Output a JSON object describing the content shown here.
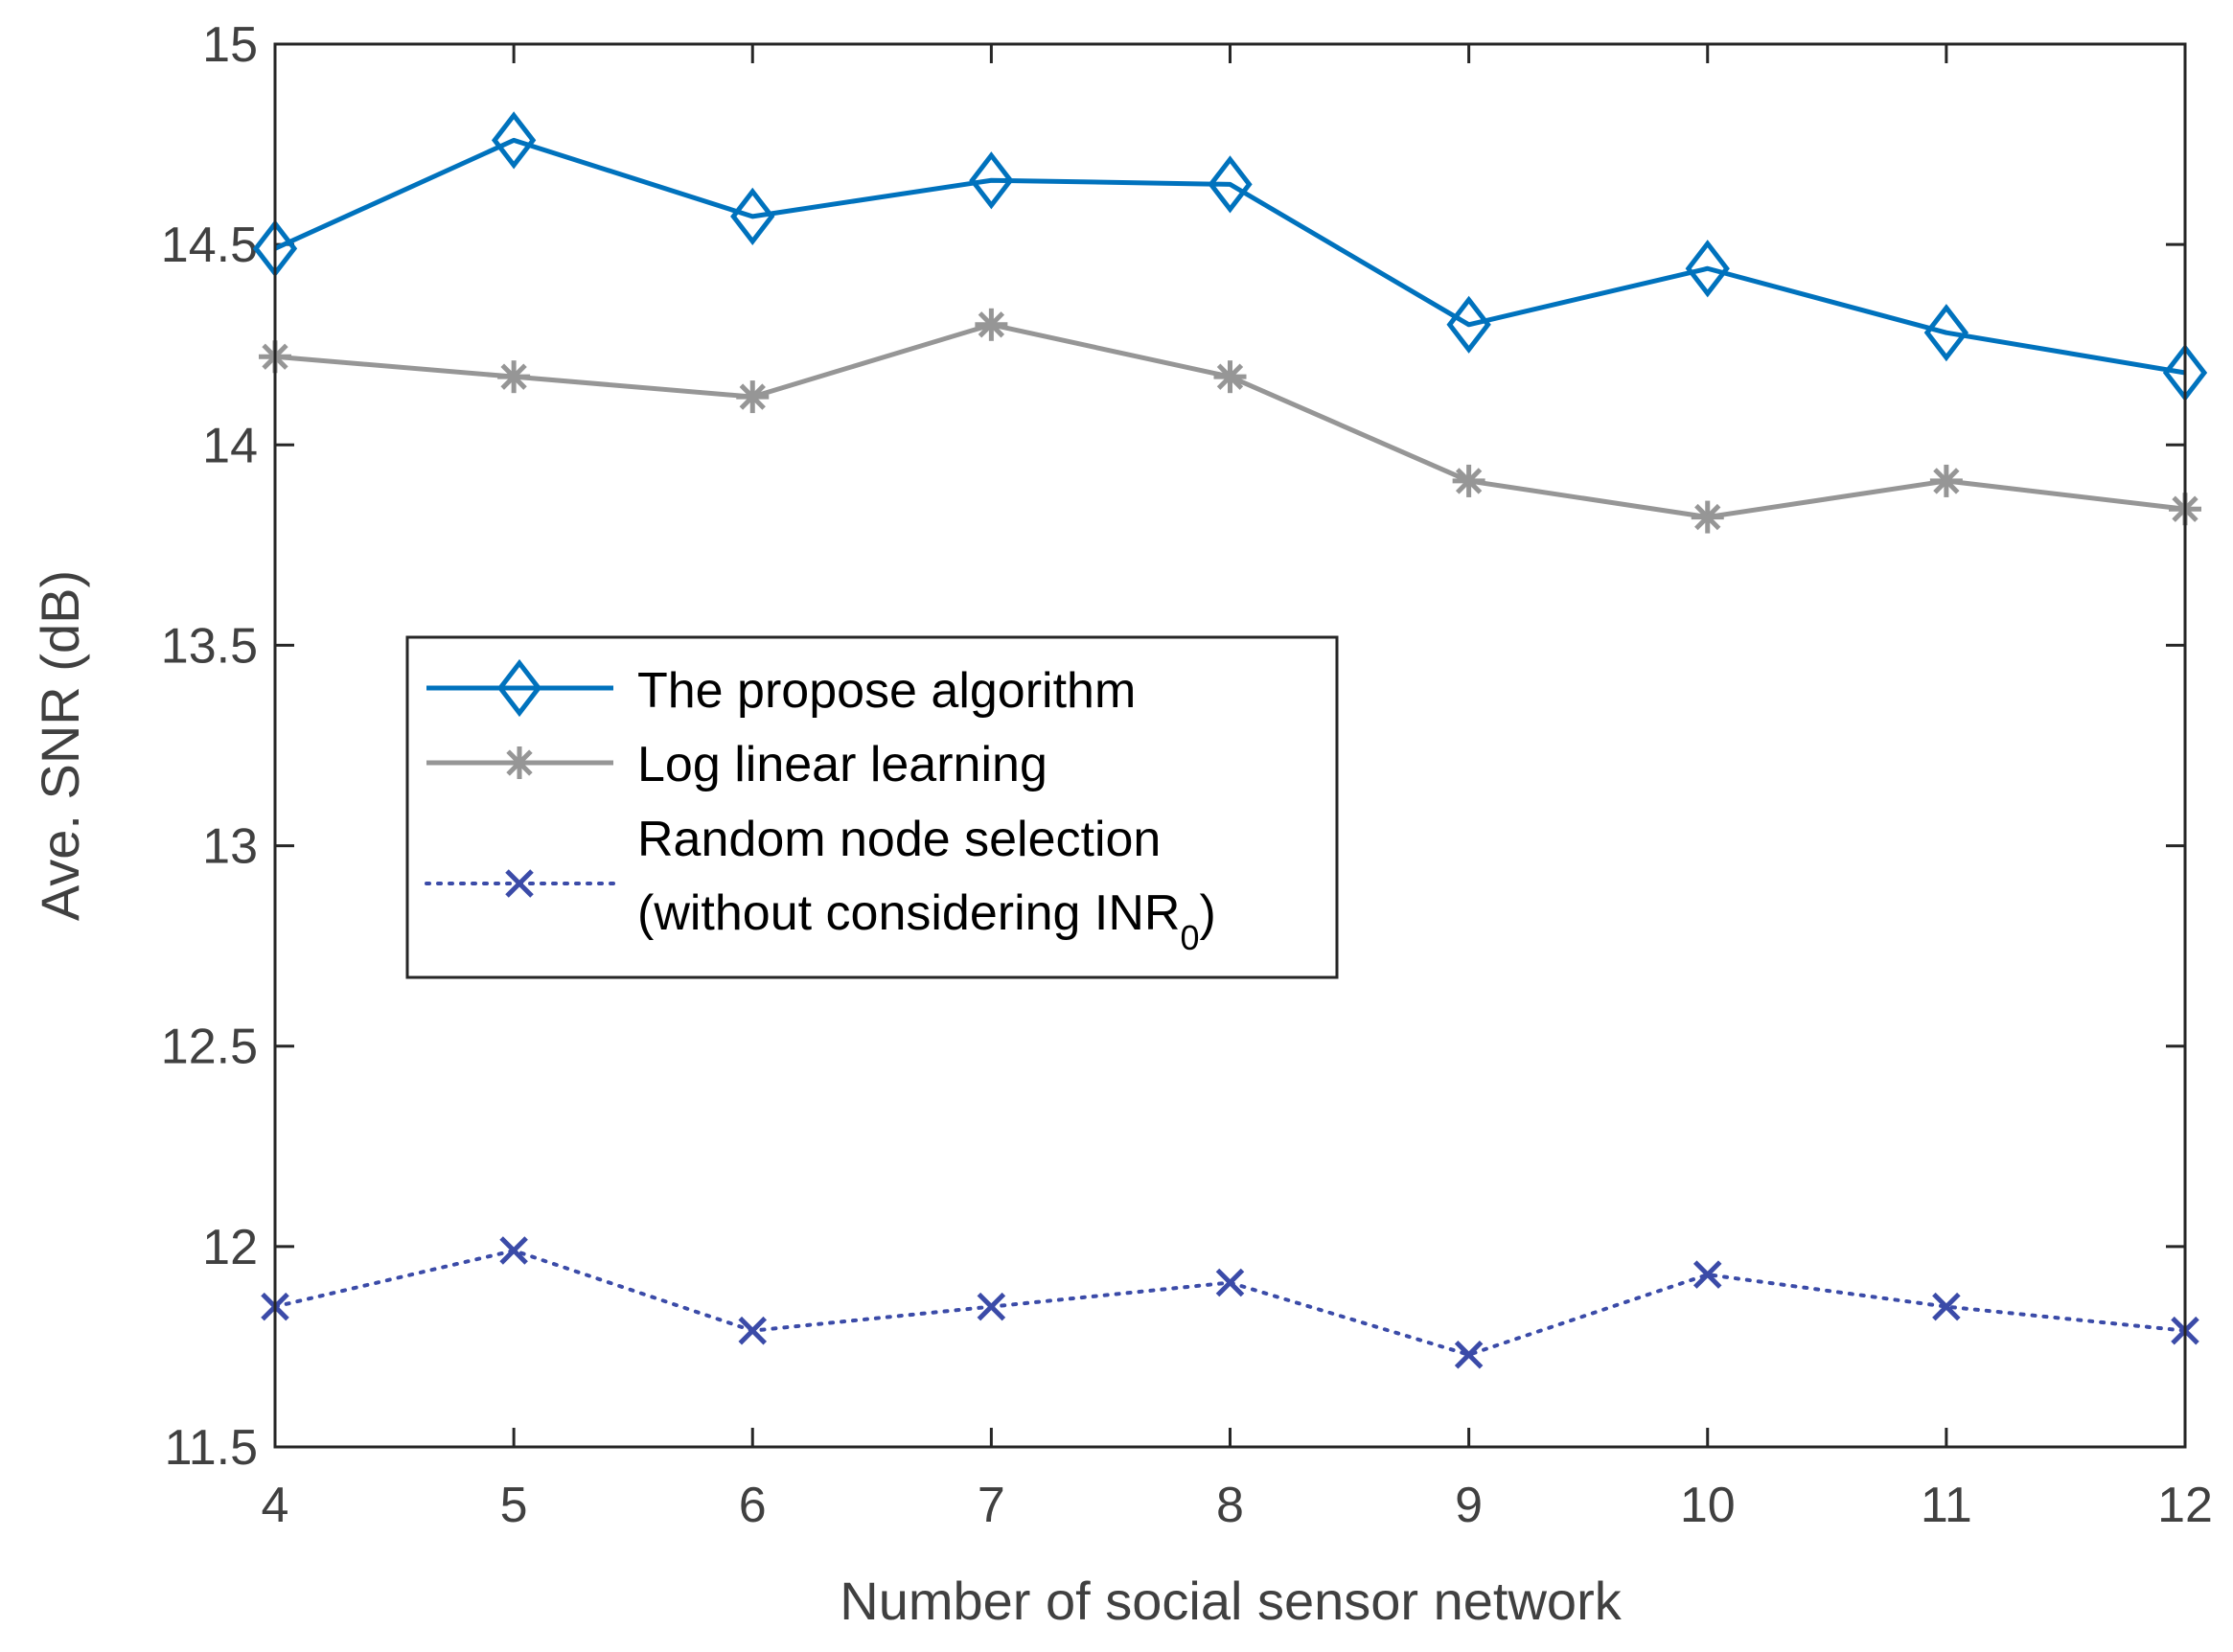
{
  "chart_data": {
    "type": "line",
    "title": "",
    "xlabel": "Number of social sensor network",
    "ylabel": "Ave. SNR (dB)",
    "xlim": [
      4,
      12
    ],
    "ylim": [
      11.5,
      15
    ],
    "xticks": [
      4,
      5,
      6,
      7,
      8,
      9,
      10,
      11,
      12
    ],
    "yticks": [
      11.5,
      12,
      12.5,
      13,
      13.5,
      14,
      14.5,
      15
    ],
    "xtick_labels": [
      "4",
      "5",
      "6",
      "7",
      "8",
      "9",
      "10",
      "11",
      "12"
    ],
    "ytick_labels": [
      "11.5",
      "12",
      "12.5",
      "13",
      "13.5",
      "14",
      "14.5",
      "15"
    ],
    "grid": false,
    "legend_position": "center-left",
    "x": [
      4,
      5,
      6,
      7,
      8,
      9,
      10,
      11,
      12
    ],
    "series": [
      {
        "name": "The propose algorithm",
        "values": [
          14.49,
          14.76,
          14.57,
          14.66,
          14.65,
          14.3,
          14.44,
          14.28,
          14.18
        ],
        "color": "#0072BD",
        "marker": "diamond",
        "line_style": "solid"
      },
      {
        "name": "Log linear learning",
        "values": [
          14.22,
          14.17,
          14.12,
          14.3,
          14.17,
          13.91,
          13.82,
          13.91,
          13.84
        ],
        "color": "#969696",
        "marker": "asterisk",
        "line_style": "solid"
      },
      {
        "name": "Random node selection",
        "name_line2": "(without considering INR",
        "name_line2_subscript": "0",
        "name_line2_suffix": ")",
        "values": [
          11.85,
          11.99,
          11.79,
          11.85,
          11.91,
          11.73,
          11.93,
          11.85,
          11.79
        ],
        "color": "#3B4BA8",
        "marker": "x",
        "line_style": "dotted"
      }
    ]
  }
}
